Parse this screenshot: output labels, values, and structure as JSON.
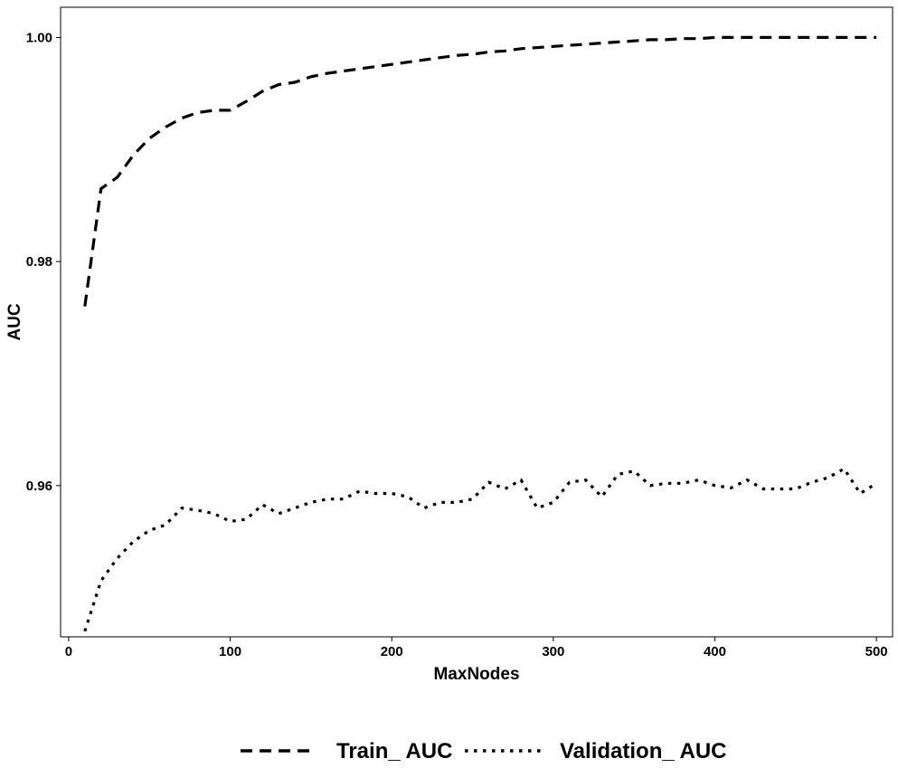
{
  "chart_data": {
    "type": "line",
    "title": "",
    "xlabel": "MaxNodes",
    "ylabel": "AUC",
    "xlim": [
      -5,
      510
    ],
    "ylim": [
      0.9465,
      1.0027
    ],
    "xticks": [
      0,
      100,
      200,
      300,
      400,
      500
    ],
    "xtick_labels": [
      "0",
      "100",
      "200",
      "300",
      "400",
      "500"
    ],
    "yticks": [
      0.96,
      0.98,
      1.0
    ],
    "ytick_labels": [
      "0.96",
      "0.98",
      "1.00"
    ],
    "grid": false,
    "legend": "bottom",
    "x": [
      10,
      20,
      30,
      40,
      50,
      60,
      70,
      80,
      90,
      100,
      110,
      120,
      130,
      140,
      150,
      160,
      170,
      180,
      190,
      200,
      210,
      220,
      230,
      240,
      250,
      260,
      270,
      280,
      290,
      300,
      310,
      320,
      330,
      340,
      350,
      360,
      370,
      380,
      390,
      400,
      410,
      420,
      430,
      440,
      450,
      460,
      470,
      480,
      490,
      500
    ],
    "series": [
      {
        "name": "Train_ AUC",
        "style": "dashed",
        "values": [
          0.976,
          0.9865,
          0.9875,
          0.9895,
          0.991,
          0.992,
          0.9928,
          0.9933,
          0.9935,
          0.9935,
          0.9943,
          0.9952,
          0.9958,
          0.996,
          0.9965,
          0.9968,
          0.997,
          0.9972,
          0.9974,
          0.9976,
          0.9978,
          0.998,
          0.9982,
          0.9984,
          0.9985,
          0.9987,
          0.9988,
          0.999,
          0.9991,
          0.9992,
          0.9993,
          0.9994,
          0.9995,
          0.9996,
          0.9997,
          0.9998,
          0.9998,
          0.9999,
          0.9999,
          1.0,
          1.0,
          1.0,
          1.0,
          1.0,
          1.0,
          1.0,
          1.0,
          1.0,
          1.0,
          1.0
        ]
      },
      {
        "name": "Validation_ AUC",
        "style": "dotted",
        "values": [
          0.947,
          0.9515,
          0.9535,
          0.955,
          0.956,
          0.9565,
          0.958,
          0.9578,
          0.9575,
          0.9568,
          0.957,
          0.9583,
          0.9575,
          0.958,
          0.9585,
          0.9588,
          0.9588,
          0.9595,
          0.9593,
          0.9593,
          0.959,
          0.958,
          0.9585,
          0.9585,
          0.9588,
          0.9603,
          0.9597,
          0.9605,
          0.958,
          0.9585,
          0.9603,
          0.9605,
          0.959,
          0.961,
          0.9613,
          0.96,
          0.9602,
          0.9602,
          0.9605,
          0.96,
          0.9598,
          0.9605,
          0.9597,
          0.9597,
          0.9597,
          0.9603,
          0.9607,
          0.9615,
          0.9593,
          0.9602
        ]
      }
    ]
  }
}
